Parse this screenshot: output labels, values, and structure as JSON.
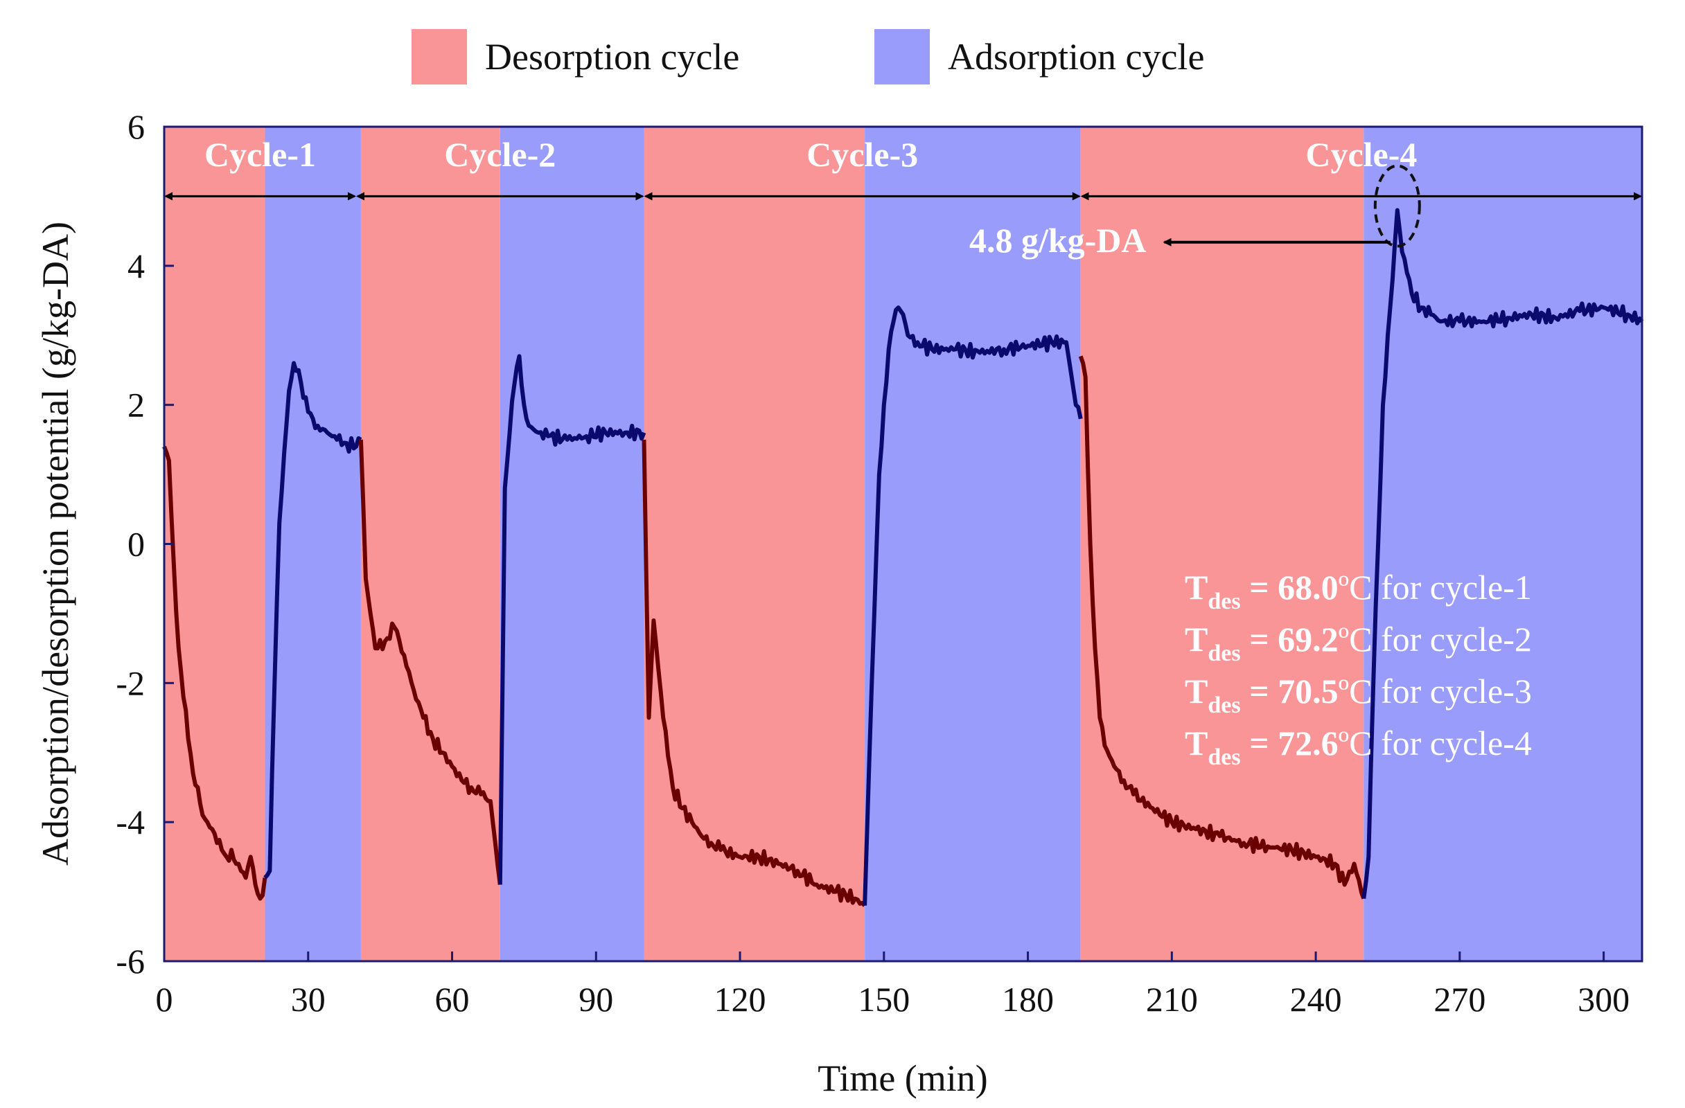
{
  "chart_data": {
    "type": "line",
    "xlabel": "Time (min)",
    "ylabel": "Adsorption/desorption potential (g/kg-DA)",
    "xlim": [
      0,
      308
    ],
    "ylim": [
      -6,
      6
    ],
    "xticks": [
      0,
      30,
      60,
      90,
      120,
      150,
      180,
      210,
      240,
      270,
      300
    ],
    "yticks": [
      6,
      4,
      2,
      0,
      -2,
      -4,
      -6
    ],
    "grid": false,
    "legend": {
      "placement": "top-center",
      "items": [
        {
          "label": "Desorption cycle",
          "color": "#fa9597"
        },
        {
          "label": "Adsorption cycle",
          "color": "#9a9cfb"
        }
      ]
    },
    "colors": {
      "desorption_band": "#fa9597",
      "adsorption_band": "#9a9cfb",
      "desorption_line": "#6b0000",
      "adsorption_line": "#0a0a6e"
    },
    "bands": [
      {
        "phase": "desorption",
        "x": [
          0,
          21
        ]
      },
      {
        "phase": "adsorption",
        "x": [
          21,
          41
        ]
      },
      {
        "phase": "desorption",
        "x": [
          41,
          70
        ]
      },
      {
        "phase": "adsorption",
        "x": [
          70,
          100
        ]
      },
      {
        "phase": "desorption",
        "x": [
          100,
          146
        ]
      },
      {
        "phase": "adsorption",
        "x": [
          146,
          191
        ]
      },
      {
        "phase": "desorption",
        "x": [
          191,
          250
        ]
      },
      {
        "phase": "adsorption",
        "x": [
          250,
          308
        ]
      }
    ],
    "cycles": [
      {
        "label": "Cycle-1",
        "x": [
          0,
          40
        ]
      },
      {
        "label": "Cycle-2",
        "x": [
          40,
          100
        ]
      },
      {
        "label": "Cycle-3",
        "x": [
          100,
          191
        ]
      },
      {
        "label": "Cycle-4",
        "x": [
          191,
          308
        ]
      }
    ],
    "cycle_arrow_y": 5.0,
    "peak_annotation": {
      "label": "4.8 g/kg-DA",
      "x": 257,
      "y": 4.8,
      "text_x": 207,
      "text_y": 4.2
    },
    "tdes_lines": [
      {
        "symbol": "T",
        "sub": "des",
        "value": "= 68.0",
        "unit": "ºC for cycle-1"
      },
      {
        "symbol": "T",
        "sub": "des",
        "value": "= 69.2",
        "unit": "ºC for cycle-2"
      },
      {
        "symbol": "T",
        "sub": "des",
        "value": "= 70.5",
        "unit": "ºC for cycle-3"
      },
      {
        "symbol": "T",
        "sub": "des",
        "value": "= 72.6",
        "unit": "ºC for cycle-4"
      }
    ],
    "series": [
      {
        "phase": "desorption",
        "x": [
          0,
          1,
          2,
          3,
          4,
          5,
          6,
          7,
          8,
          9,
          10,
          11,
          12,
          13,
          14,
          15,
          16,
          17,
          18,
          19,
          20,
          21
        ],
        "y": [
          1.4,
          1.2,
          -0.3,
          -1.5,
          -2.2,
          -2.8,
          -3.3,
          -3.5,
          -3.9,
          -4.0,
          -4.1,
          -4.3,
          -4.4,
          -4.5,
          -4.4,
          -4.6,
          -4.7,
          -4.8,
          -4.5,
          -4.9,
          -5.1,
          -4.8
        ]
      },
      {
        "phase": "adsorption",
        "x": [
          21,
          22,
          23,
          24,
          25,
          26,
          27,
          28,
          29,
          30,
          31,
          32,
          34,
          36,
          38,
          40,
          41
        ],
        "y": [
          -4.8,
          -4.7,
          -2.0,
          0.3,
          1.3,
          2.2,
          2.6,
          2.5,
          2.1,
          1.9,
          1.8,
          1.7,
          1.6,
          1.5,
          1.45,
          1.4,
          1.5
        ]
      },
      {
        "phase": "desorption",
        "x": [
          41,
          42,
          44,
          46,
          48,
          50,
          52,
          54,
          56,
          58,
          60,
          62,
          64,
          66,
          68,
          70
        ],
        "y": [
          1.5,
          -0.5,
          -1.5,
          -1.4,
          -1.2,
          -1.6,
          -2.1,
          -2.5,
          -2.8,
          -3.0,
          -3.2,
          -3.4,
          -3.5,
          -3.6,
          -3.7,
          -4.9
        ]
      },
      {
        "phase": "adsorption",
        "x": [
          70,
          71,
          72,
          73,
          74,
          75,
          76,
          78,
          80,
          84,
          88,
          92,
          96,
          100
        ],
        "y": [
          -4.9,
          0.8,
          1.6,
          2.3,
          2.7,
          2.0,
          1.7,
          1.6,
          1.55,
          1.5,
          1.55,
          1.6,
          1.6,
          1.6
        ]
      },
      {
        "phase": "desorption",
        "x": [
          100,
          101,
          102,
          103,
          104,
          106,
          108,
          110,
          112,
          114,
          116,
          120,
          124,
          128,
          132,
          136,
          140,
          144,
          146
        ],
        "y": [
          1.5,
          -2.5,
          -1.1,
          -1.8,
          -2.5,
          -3.5,
          -3.8,
          -4.0,
          -4.2,
          -4.3,
          -4.4,
          -4.5,
          -4.5,
          -4.6,
          -4.7,
          -4.9,
          -5.0,
          -5.1,
          -5.2
        ]
      },
      {
        "phase": "adsorption",
        "x": [
          146,
          147,
          148,
          149,
          150,
          151,
          152,
          153,
          154,
          155,
          157,
          160,
          165,
          170,
          175,
          180,
          185,
          188,
          190,
          191
        ],
        "y": [
          -5.2,
          -3.0,
          -1.0,
          1.0,
          2.0,
          2.8,
          3.2,
          3.4,
          3.3,
          3.0,
          2.9,
          2.8,
          2.8,
          2.75,
          2.8,
          2.85,
          2.9,
          2.9,
          2.0,
          1.8
        ]
      },
      {
        "phase": "desorption",
        "x": [
          191,
          192,
          193,
          194,
          195,
          196,
          198,
          200,
          202,
          206,
          210,
          215,
          220,
          225,
          230,
          235,
          240,
          244,
          246,
          248,
          250
        ],
        "y": [
          2.7,
          2.4,
          0.0,
          -1.5,
          -2.5,
          -2.9,
          -3.2,
          -3.4,
          -3.6,
          -3.8,
          -4.0,
          -4.1,
          -4.2,
          -4.3,
          -4.35,
          -4.4,
          -4.5,
          -4.6,
          -4.9,
          -4.6,
          -5.1
        ]
      },
      {
        "phase": "adsorption",
        "x": [
          250,
          251,
          252,
          253,
          254,
          255,
          256,
          257,
          258,
          259,
          260,
          262,
          264,
          266,
          270,
          275,
          280,
          285,
          290,
          295,
          300,
          305,
          308
        ],
        "y": [
          -5.1,
          -4.5,
          -2.0,
          0.0,
          2.0,
          3.0,
          3.8,
          4.8,
          4.2,
          3.9,
          3.6,
          3.4,
          3.3,
          3.2,
          3.2,
          3.2,
          3.25,
          3.3,
          3.25,
          3.35,
          3.4,
          3.3,
          3.2
        ]
      }
    ]
  }
}
